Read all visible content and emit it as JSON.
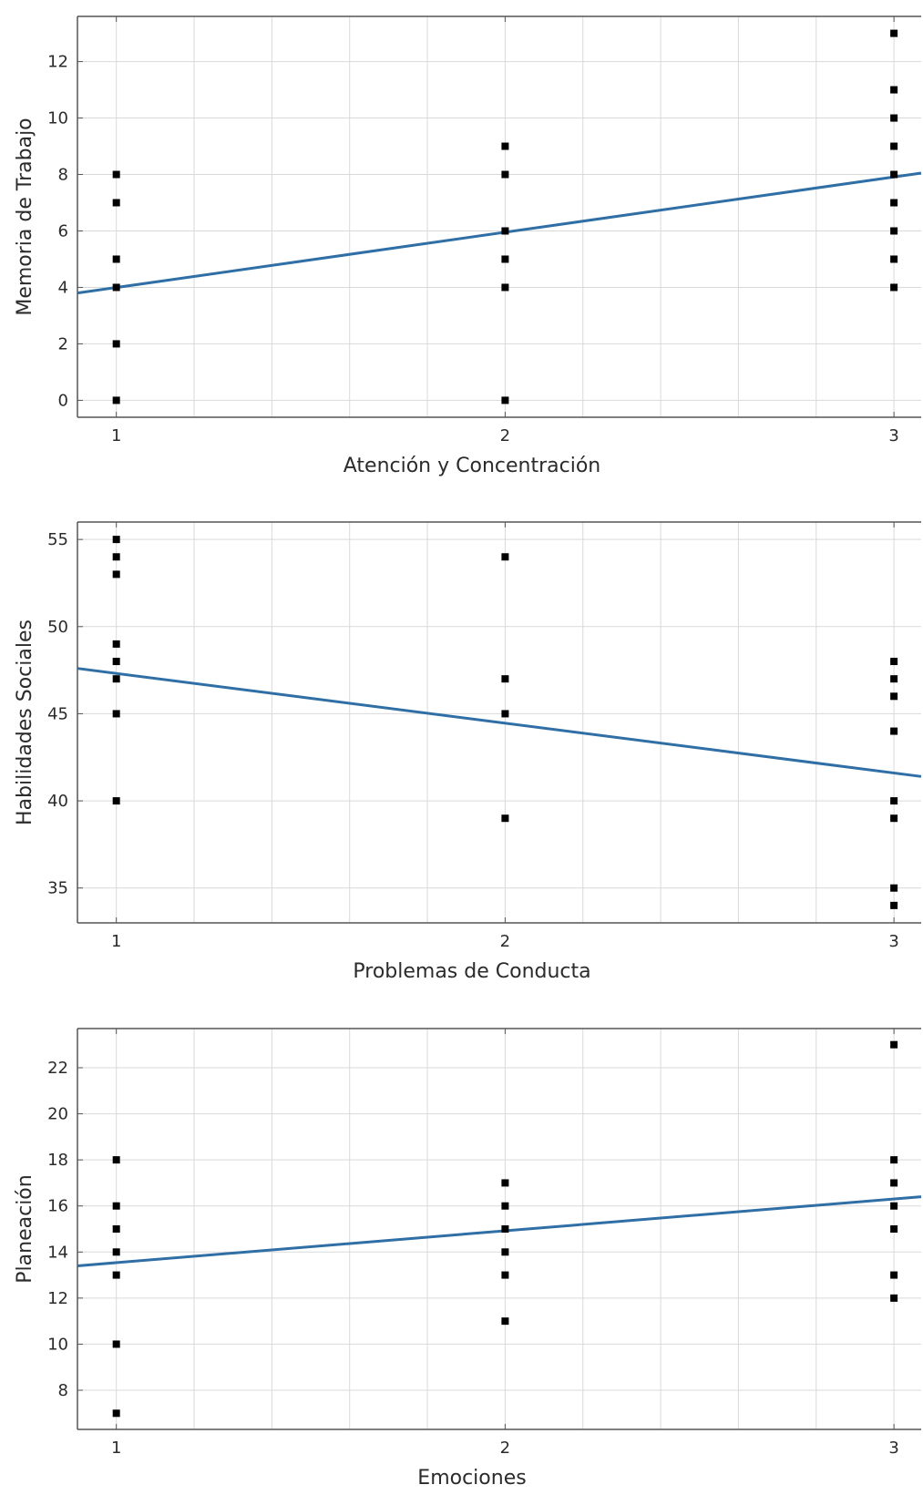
{
  "colors": {
    "fit_line": "#2f6fa6",
    "points": "#000000",
    "grid": "#d9d9d9",
    "frame": "#555555"
  },
  "chart_data": [
    {
      "type": "scatter",
      "title": "",
      "xlabel": "Atención y Concentración",
      "ylabel": "Memoria de Trabajo",
      "xlim": [
        0.9,
        3.07
      ],
      "ylim": [
        -0.6,
        13.6
      ],
      "xticks": [
        1,
        2,
        3
      ],
      "yticks": [
        0,
        2,
        4,
        6,
        8,
        10,
        12
      ],
      "grid": true,
      "x": [
        1,
        1,
        1,
        1,
        1,
        1,
        2,
        2,
        2,
        2,
        2,
        2,
        3,
        3,
        3,
        3,
        3,
        3,
        3,
        3,
        3
      ],
      "y": [
        8,
        7,
        5,
        4,
        2,
        0,
        9,
        8,
        6,
        5,
        4,
        0,
        13,
        11,
        10,
        9,
        8,
        7,
        6,
        5,
        4
      ],
      "fit_line": {
        "x": [
          0.9,
          3.07
        ],
        "y": [
          3.8,
          8.05
        ]
      }
    },
    {
      "type": "scatter",
      "title": "",
      "xlabel": "Problemas de Conducta",
      "ylabel": "Habilidades Sociales",
      "xlim": [
        0.9,
        3.07
      ],
      "ylim": [
        33,
        56
      ],
      "xticks": [
        1,
        2,
        3
      ],
      "yticks": [
        35,
        40,
        45,
        50,
        55
      ],
      "grid": true,
      "x": [
        1,
        1,
        1,
        1,
        1,
        1,
        1,
        1,
        2,
        2,
        2,
        2,
        3,
        3,
        3,
        3,
        3,
        3,
        3,
        3
      ],
      "y": [
        55,
        54,
        53,
        49,
        48,
        47,
        45,
        40,
        54,
        47,
        45,
        39,
        48,
        47,
        46,
        44,
        40,
        39,
        35,
        34
      ],
      "fit_line": {
        "x": [
          0.9,
          3.07
        ],
        "y": [
          47.6,
          41.4
        ]
      }
    },
    {
      "type": "scatter",
      "title": "",
      "xlabel": "Emociones",
      "ylabel": "Planeación",
      "xlim": [
        0.9,
        3.07
      ],
      "ylim": [
        6.3,
        23.7
      ],
      "xticks": [
        1,
        2,
        3
      ],
      "yticks": [
        8,
        10,
        12,
        14,
        16,
        18,
        20,
        22
      ],
      "grid": true,
      "x": [
        1,
        1,
        1,
        1,
        1,
        1,
        1,
        2,
        2,
        2,
        2,
        2,
        2,
        3,
        3,
        3,
        3,
        3,
        3,
        3
      ],
      "y": [
        18,
        16,
        15,
        14,
        13,
        10,
        7,
        17,
        16,
        15,
        14,
        13,
        11,
        23,
        18,
        17,
        16,
        15,
        13,
        12
      ],
      "fit_line": {
        "x": [
          0.9,
          3.07
        ],
        "y": [
          13.4,
          16.4
        ]
      }
    }
  ]
}
